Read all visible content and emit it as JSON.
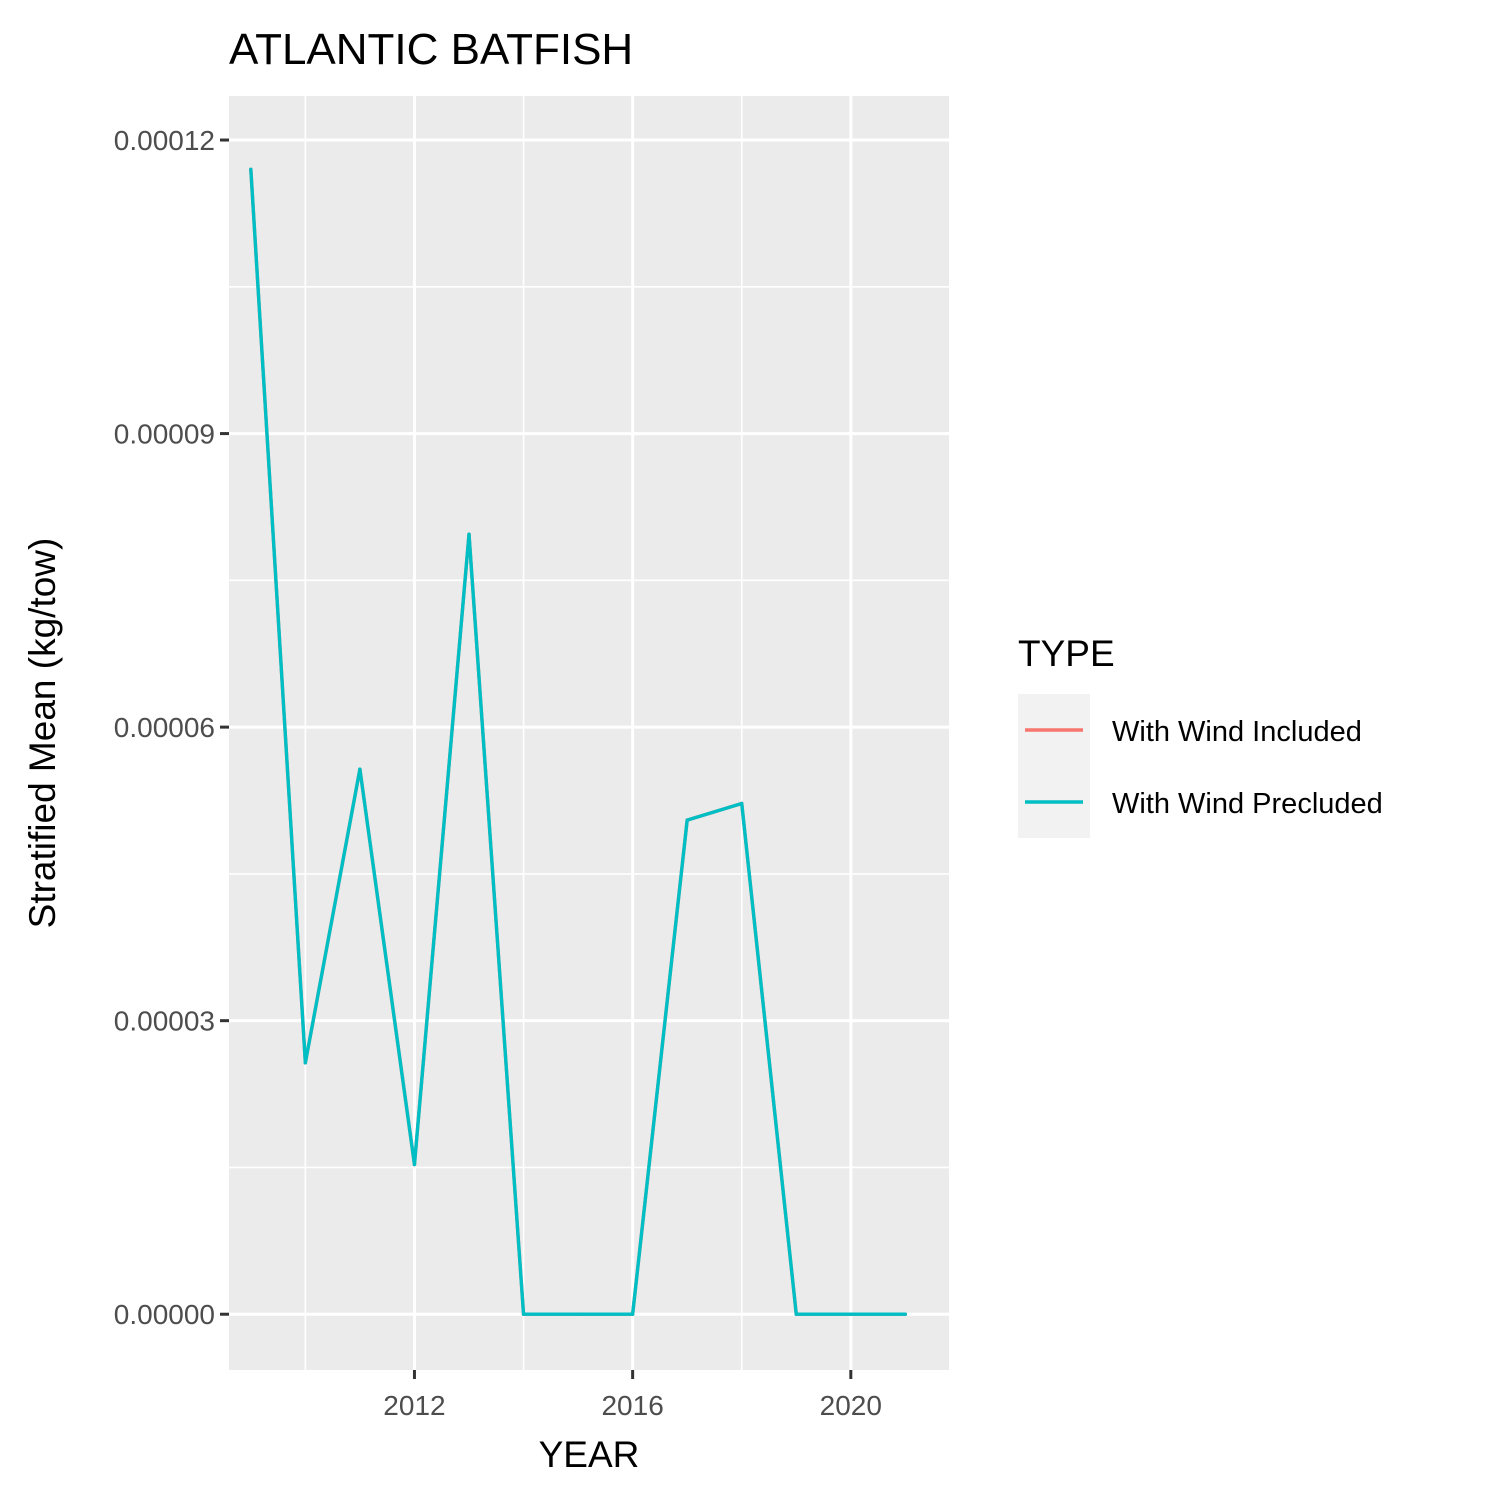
{
  "chart_data": {
    "type": "line",
    "title": "ATLANTIC BATFISH",
    "xlabel": "YEAR",
    "ylabel": "Stratified Mean (kg/tow)",
    "xlim": [
      2008.6,
      2021.8
    ],
    "ylim": [
      -5.7e-06,
      0.0001245
    ],
    "x_ticks": [
      2012,
      2016,
      2020
    ],
    "x_tick_labels": [
      "2012",
      "2016",
      "2020"
    ],
    "x_minor_ticks": [
      2010,
      2014,
      2018
    ],
    "y_ticks": [
      0,
      3e-05,
      6e-05,
      9e-05,
      0.00012
    ],
    "y_tick_labels": [
      "0.00000",
      "0.00003",
      "0.00006",
      "0.00009",
      "0.00012"
    ],
    "y_minor_ticks": [
      1.5e-05,
      4.5e-05,
      7.5e-05,
      0.000105
    ],
    "grid": true,
    "legend": {
      "title": "TYPE",
      "position": "right",
      "entries": [
        {
          "label": "With Wind Included",
          "color": "#F8766D"
        },
        {
          "label": "With Wind Precluded",
          "color": "#00BFC4"
        }
      ]
    },
    "series": [
      {
        "name": "With Wind Included",
        "color": "#F8766D",
        "x": [
          2009,
          2010,
          2011,
          2012,
          2013,
          2014,
          2015,
          2016,
          2017,
          2018,
          2019,
          2020,
          2021
        ],
        "y": [
          0.000117,
          2.57e-05,
          5.57e-05,
          1.53e-05,
          7.97e-05,
          0,
          0,
          0,
          5.05e-05,
          5.22e-05,
          0,
          0,
          0
        ]
      },
      {
        "name": "With Wind Precluded",
        "color": "#00BFC4",
        "x": [
          2009,
          2010,
          2011,
          2012,
          2013,
          2014,
          2015,
          2016,
          2017,
          2018,
          2019,
          2020,
          2021
        ],
        "y": [
          0.000117,
          2.57e-05,
          5.57e-05,
          1.53e-05,
          7.97e-05,
          0,
          0,
          0,
          5.05e-05,
          5.22e-05,
          0,
          0,
          0
        ]
      }
    ]
  },
  "colors": {
    "panel_background": "#EBEBEB",
    "grid_major": "#FFFFFF",
    "legend_key_background": "#F2F2F2",
    "tick_text": "#4D4D4D"
  }
}
